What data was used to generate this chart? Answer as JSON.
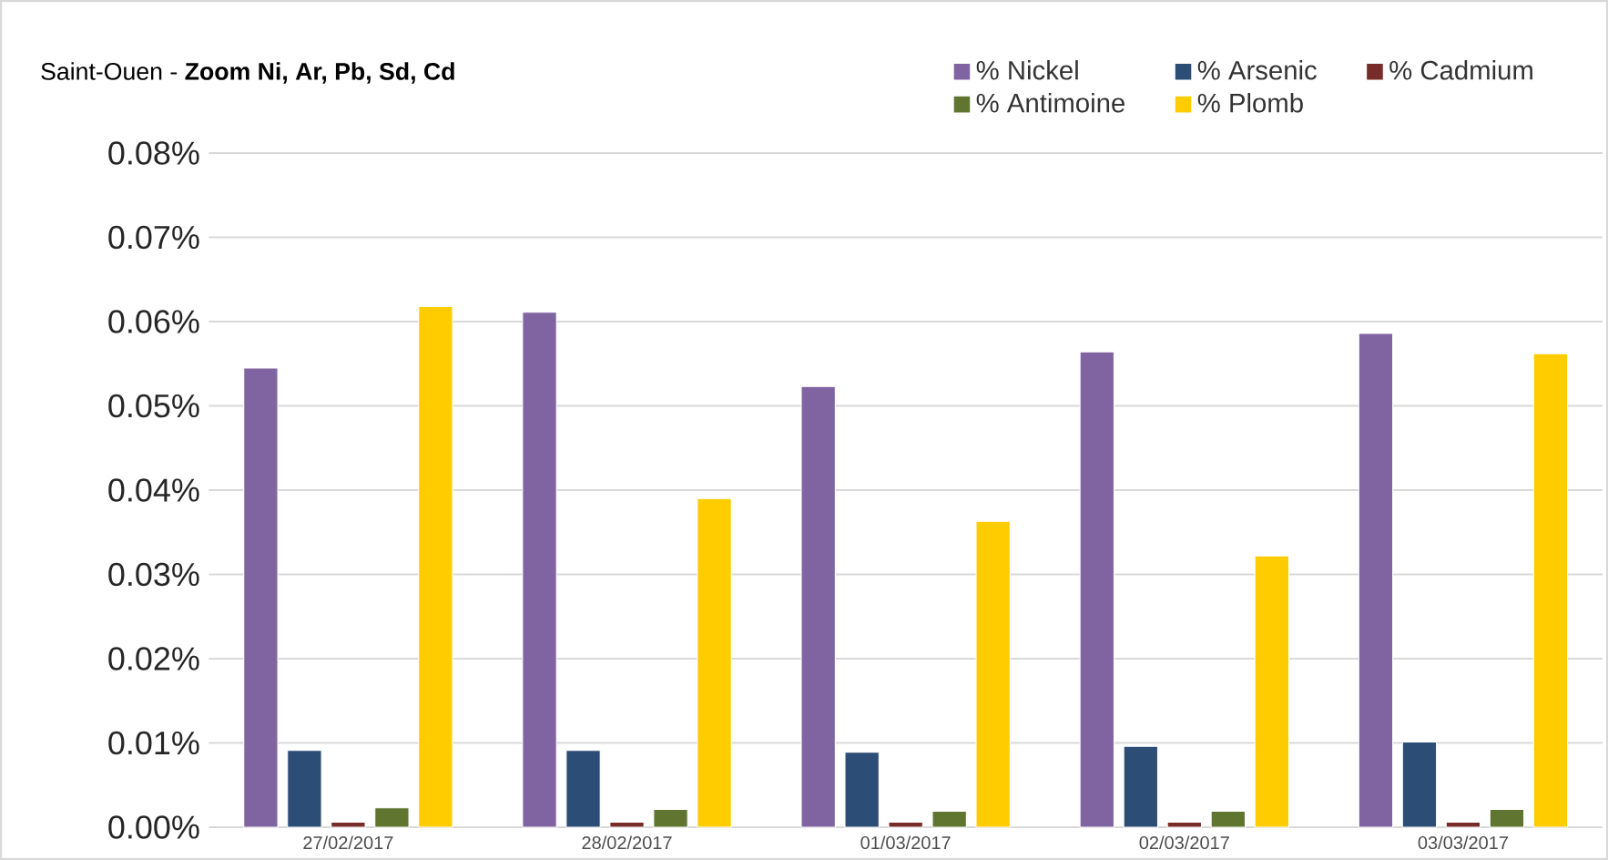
{
  "chart_data": {
    "type": "bar",
    "title": "Saint-Ouen - **Zoom Ni, Ar, Pb, Sd, Cd**",
    "categories": [
      "27/02/2017",
      "28/02/2017",
      "01/03/2017",
      "02/03/2017",
      "03/03/2017"
    ],
    "series": [
      {
        "name": "% Nickel",
        "color": "#8064a2",
        "values": [
          0.0545,
          0.0611,
          0.0523,
          0.0564,
          0.0586
        ]
      },
      {
        "name": "% Arsenic",
        "color": "#2c4d75",
        "values": [
          0.0091,
          0.0091,
          0.0089,
          0.0096,
          0.0101
        ]
      },
      {
        "name": "% Cadmium",
        "color": "#772c2a",
        "values": [
          0.0006,
          0.0006,
          0.0006,
          0.0006,
          0.0006
        ]
      },
      {
        "name": "% Antimoine",
        "color": "#5f7530",
        "values": [
          0.0023,
          0.0021,
          0.0019,
          0.0019,
          0.0021
        ]
      },
      {
        "name": "% Plomb",
        "color": "#ffcc00",
        "values": [
          0.0618,
          0.039,
          0.0363,
          0.0322,
          0.0562
        ]
      }
    ],
    "ylim": [
      0,
      0.08
    ],
    "yticks": [
      {
        "value": 0,
        "label": "0.00%"
      },
      {
        "value": 0.01,
        "label": "0.01%"
      },
      {
        "value": 0.02,
        "label": "0.02%"
      },
      {
        "value": 0.03,
        "label": "0.03%"
      },
      {
        "value": 0.04,
        "label": "0.04%"
      },
      {
        "value": 0.05,
        "label": "0.05%"
      },
      {
        "value": 0.06,
        "label": "0.06%"
      },
      {
        "value": 0.07,
        "label": "0.07%"
      },
      {
        "value": 0.08,
        "label": "0.08%"
      }
    ],
    "grid": "y",
    "legend": "top right"
  }
}
